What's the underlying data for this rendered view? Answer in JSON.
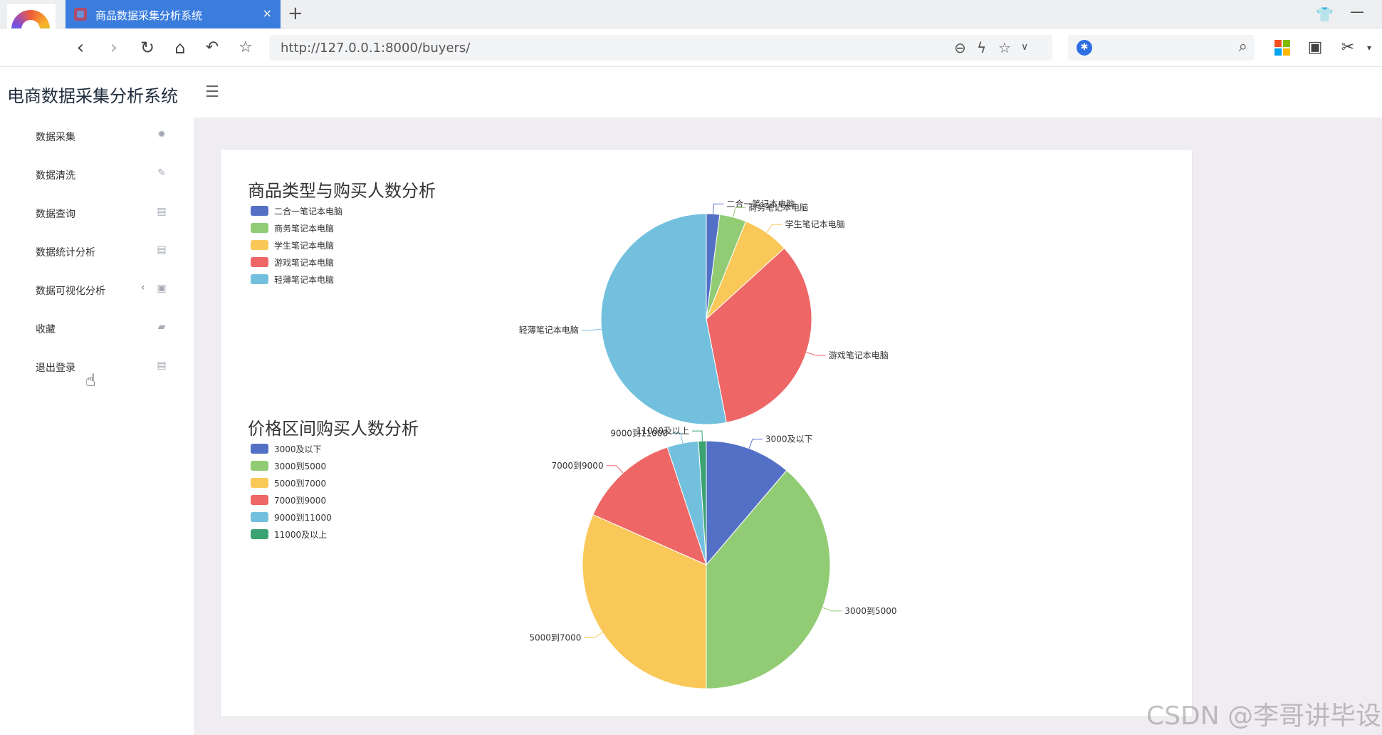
{
  "browser": {
    "tab_title": "商品数据采集分析系统",
    "tab_close": "×",
    "new_tab": "+",
    "url": "http://127.0.0.1:8000/buyers/"
  },
  "app": {
    "title": "电商数据采集分析系统"
  },
  "sidebar": {
    "items": [
      {
        "label": "数据采集",
        "icon": "bug-icon"
      },
      {
        "label": "数据清洗",
        "icon": "broom-icon"
      },
      {
        "label": "数据查询",
        "icon": "search-doc-icon"
      },
      {
        "label": "数据统计分析",
        "icon": "chart-doc-icon"
      },
      {
        "label": "数据可视化分析",
        "icon": "image-icon",
        "caret": "‹"
      },
      {
        "label": "收藏",
        "icon": "folder-star-icon"
      },
      {
        "label": "退出登录",
        "icon": "logout-icon"
      }
    ]
  },
  "watermark": "CSDN @李哥讲毕设",
  "chart_data": [
    {
      "type": "pie",
      "title": "商品类型与购买人数分析",
      "categories": [
        "二合一笔记本电脑",
        "商务笔记本电脑",
        "学生笔记本电脑",
        "游戏笔记本电脑",
        "轻薄笔记本电脑"
      ],
      "values": [
        2,
        4,
        7,
        33,
        52
      ],
      "colors": [
        "#5470c6",
        "#91cc75",
        "#fac858",
        "#ee6666",
        "#73c0de"
      ],
      "legend": "top-left",
      "rose": false
    },
    {
      "type": "pie",
      "title": "价格区间购买人数分析",
      "categories": [
        "3000及以下",
        "3000到5000",
        "5000到7000",
        "7000到9000",
        "9000到11000",
        "11000及以上"
      ],
      "values": [
        11,
        38,
        31,
        13,
        4,
        1
      ],
      "colors": [
        "#5470c6",
        "#91cc75",
        "#fac858",
        "#ee6666",
        "#73c0de",
        "#3ba272"
      ],
      "legend": "top-left",
      "rose": false
    }
  ]
}
